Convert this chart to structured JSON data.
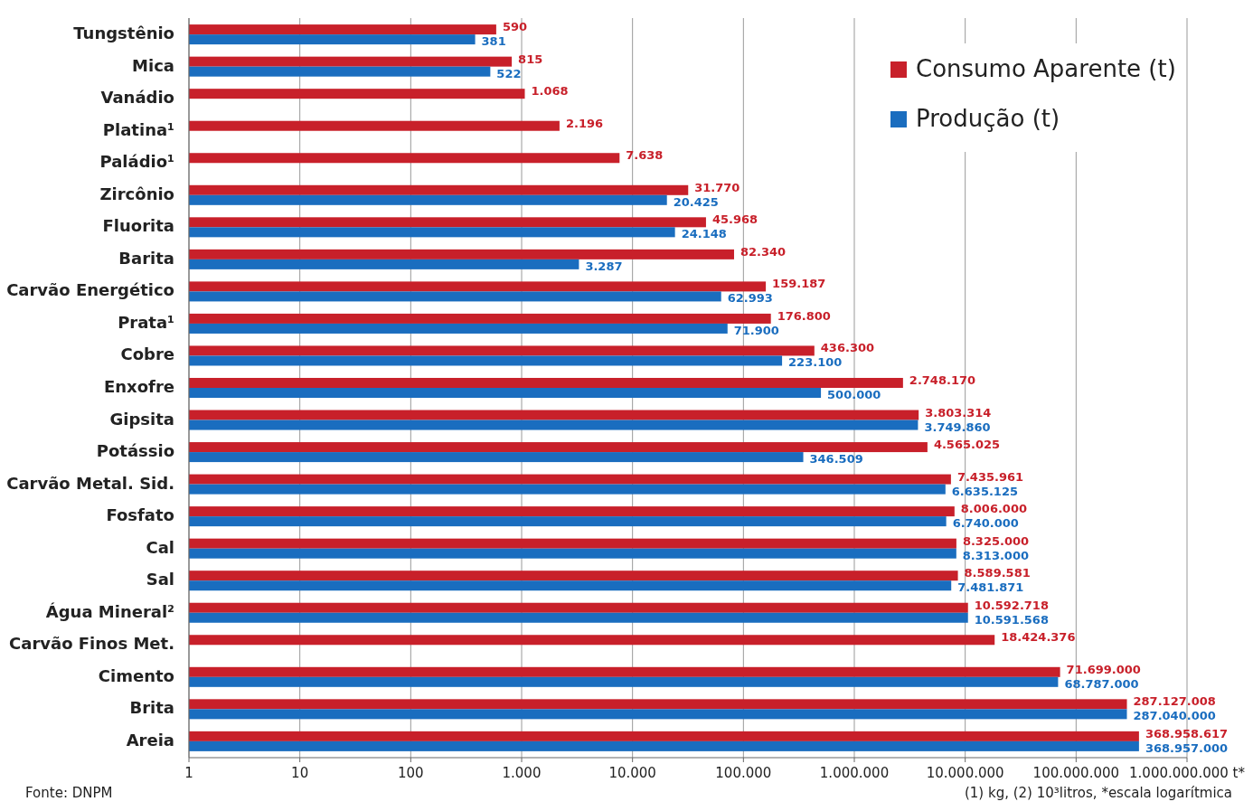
{
  "chart_data": {
    "type": "bar",
    "orientation": "horizontal",
    "log": "x",
    "grid": "x",
    "legend": "top right",
    "categories": [
      "Tungstênio",
      "Mica",
      "Vanádio",
      "Platina¹",
      "Paládio¹",
      "Zircônio",
      "Fluorita",
      "Barita",
      "Carvão Energético",
      "Prata¹",
      "Cobre",
      "Enxofre",
      "Gipsita",
      "Potássio",
      "Carvão Metal. Sid.",
      "Fosfato",
      "Cal",
      "Sal",
      "Água Mineral²",
      "Carvão Finos Met.",
      "Cimento",
      "Brita",
      "Areia"
    ],
    "series": [
      {
        "name": "Consumo Aparente (t)",
        "color": "#c8202a",
        "values": [
          590,
          815,
          1068,
          2196,
          7638,
          31770,
          45968,
          82340,
          159187,
          176800,
          436300,
          2748170,
          3803314,
          4565025,
          7435961,
          8006000,
          8325000,
          8589581,
          10592718,
          18424376,
          71699000,
          287127008,
          368958617
        ],
        "value_labels": [
          "590",
          "815",
          "1.068",
          "2.196",
          "7.638",
          "31.770",
          "45.968",
          "82.340",
          "159.187",
          "176.800",
          "436.300",
          "2.748.170",
          "3.803.314",
          "4.565.025",
          "7.435.961",
          "8.006.000",
          "8.325.000",
          "8.589.581",
          "10.592.718",
          "18.424.376",
          "71.699.000",
          "287.127.008",
          "368.958.617"
        ]
      },
      {
        "name": "Produção (t)",
        "color": "#1a6dbf",
        "values": [
          381,
          522,
          null,
          null,
          null,
          20425,
          24148,
          3287,
          62993,
          71900,
          223100,
          500000,
          3749860,
          346509,
          6635125,
          6740000,
          8313000,
          7481871,
          10591568,
          null,
          68787000,
          287040000,
          368957000
        ],
        "value_labels": [
          "381",
          "522",
          null,
          null,
          null,
          "20.425",
          "24.148",
          "3.287",
          "62.993",
          "71.900",
          "223.100",
          "500.000",
          "3.749.860",
          "346.509",
          "6.635.125",
          "6.740.000",
          "8.313.000",
          "7.481.871",
          "10.591.568",
          null,
          "68.787.000",
          "287.040.000",
          "368.957.000"
        ]
      }
    ],
    "xlim": [
      1,
      1000000000
    ],
    "xticks": [
      1,
      10,
      100,
      {
        "value": 1000,
        "label": "1.000"
      },
      {
        "value": 10000,
        "label": "10.000"
      },
      {
        "value": 100000,
        "label": "100.000"
      },
      {
        "value": 1000000,
        "label": "1.000.000"
      },
      {
        "value": 10000000,
        "label": "10.000.000"
      },
      {
        "value": 100000000,
        "label": "100.000.000"
      },
      {
        "value": 1000000000,
        "label": "1.000.000.000 t*"
      }
    ],
    "annotations": [
      "Fonte: DNPM",
      "(1) kg, (2) 10³litros, *escala logarítmica"
    ]
  }
}
